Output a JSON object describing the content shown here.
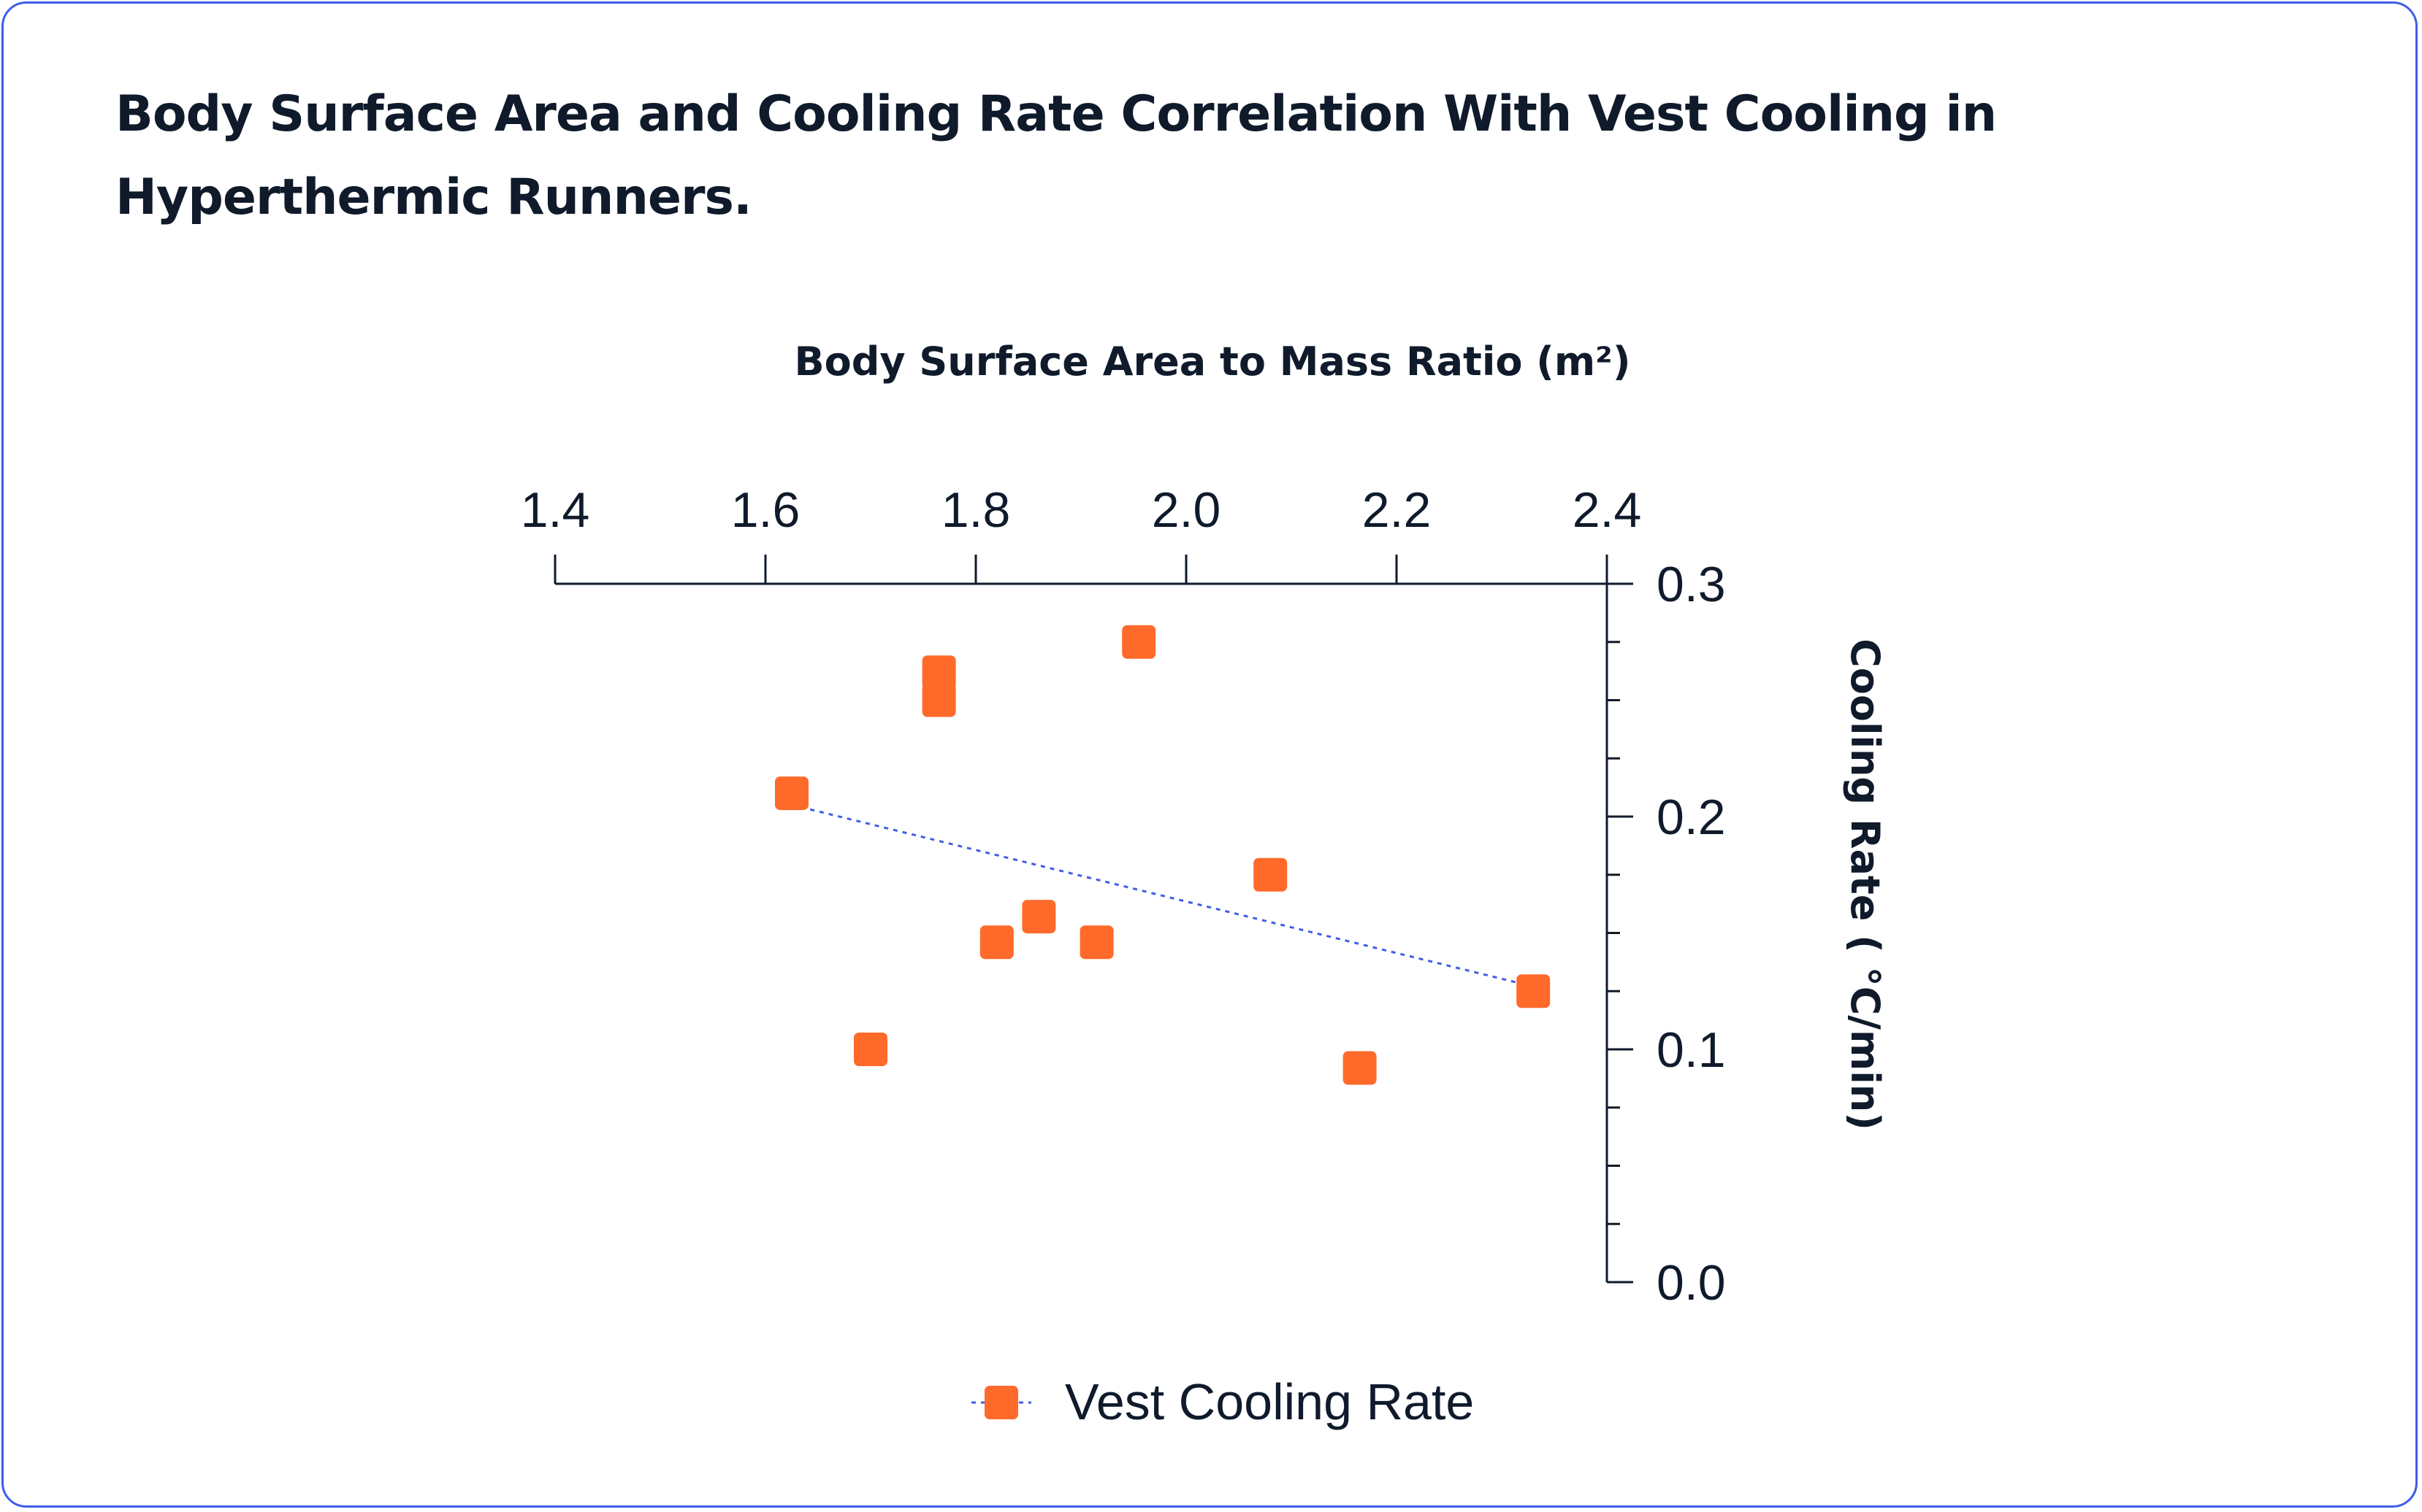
{
  "title": "Body Surface Area and Cooling Rate Correlation With Vest Cooling in Hyperthermic Runners.",
  "colors": {
    "border": "#3f5ee6",
    "marker": "#ff6a2b",
    "trendline": "#3f5ee6",
    "text": "#0f1a2b",
    "axis": "#0f1a2b"
  },
  "chart_data": {
    "type": "scatter",
    "xlabel": "Body Surface Area to Mass Ratio (m²)",
    "ylabel": "Cooling Rate ( °C/min)",
    "xlim": [
      1.4,
      2.4
    ],
    "ylim": [
      0.0,
      0.3
    ],
    "x_ticks": [
      "1.4",
      "1.6",
      "1.8",
      "2.0",
      "2.2",
      "2.4"
    ],
    "y_ticks": [
      "0.0",
      "0.1",
      "0.2",
      "0.3"
    ],
    "x_axis_position": "top",
    "y_axis_position": "right",
    "series": [
      {
        "name": "Vest Cooling Rate",
        "marker": "square",
        "points": [
          {
            "x": 1.625,
            "y": 0.21
          },
          {
            "x": 1.7,
            "y": 0.1
          },
          {
            "x": 1.765,
            "y": 0.262
          },
          {
            "x": 1.765,
            "y": 0.25
          },
          {
            "x": 1.82,
            "y": 0.146
          },
          {
            "x": 1.86,
            "y": 0.157
          },
          {
            "x": 1.915,
            "y": 0.146
          },
          {
            "x": 1.955,
            "y": 0.275
          },
          {
            "x": 2.08,
            "y": 0.175
          },
          {
            "x": 2.165,
            "y": 0.092
          },
          {
            "x": 2.33,
            "y": 0.125
          }
        ],
        "trendline": {
          "style": "dotted",
          "x1": 1.625,
          "y1": 0.205,
          "x2": 2.33,
          "y2": 0.127
        }
      }
    ],
    "legend": {
      "position": "bottom-center",
      "entries": [
        "Vest Cooling Rate"
      ]
    }
  }
}
